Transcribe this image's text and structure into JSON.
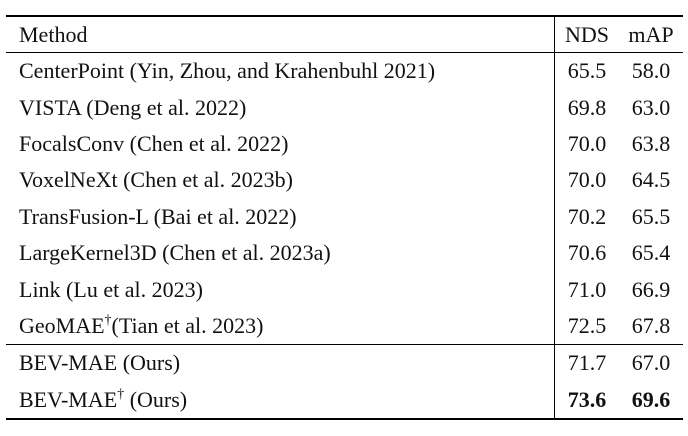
{
  "table": {
    "header": [
      "Method",
      "NDS",
      "mAP"
    ],
    "groups": [
      [
        {
          "method": "CenterPoint (Yin, Zhou, and Krahenbuhl 2021)",
          "nds": "65.5",
          "map": "58.0"
        },
        {
          "method": "VISTA (Deng et al. 2022)",
          "nds": "69.8",
          "map": "63.0"
        },
        {
          "method": "FocalsConv (Chen et al. 2022)",
          "nds": "70.0",
          "map": "63.8"
        },
        {
          "method": "VoxelNeXt (Chen et al. 2023b)",
          "nds": "70.0",
          "map": "64.5"
        },
        {
          "method": "TransFusion-L (Bai et al. 2022)",
          "nds": "70.2",
          "map": "65.5"
        },
        {
          "method": "LargeKernel3D (Chen et al. 2023a)",
          "nds": "70.6",
          "map": "65.4"
        },
        {
          "method": "Link (Lu et al. 2023)",
          "nds": "71.0",
          "map": "66.9"
        },
        {
          "method": "GeoMAE",
          "dagger": "†",
          "suffix": "(Tian et al. 2023)",
          "nds": "72.5",
          "map": "67.8"
        }
      ],
      [
        {
          "method": "BEV-MAE (Ours)",
          "nds": "71.7",
          "map": "67.0"
        },
        {
          "method": "BEV-MAE",
          "dagger": "†",
          "suffix": " (Ours)",
          "nds": "73.6",
          "map": "69.6",
          "bold": true
        }
      ]
    ]
  }
}
